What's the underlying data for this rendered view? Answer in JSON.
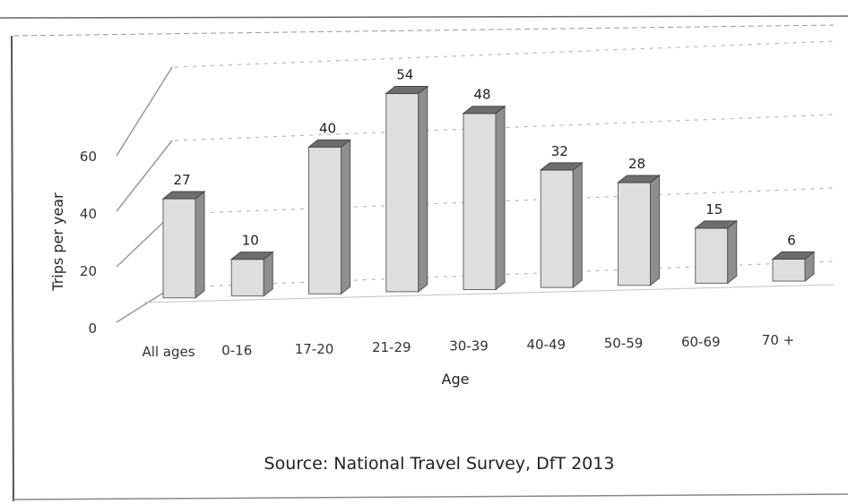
{
  "chart_data": {
    "type": "bar",
    "categories": [
      "All ages",
      "0-16",
      "17-20",
      "21-29",
      "30-39",
      "40-49",
      "50-59",
      "60-69",
      "70 +"
    ],
    "values": [
      27,
      10,
      40,
      54,
      48,
      32,
      28,
      15,
      6
    ],
    "xlabel": "Age",
    "ylabel": "Trips per year",
    "yticks": [
      0,
      20,
      40,
      60
    ],
    "ylim": [
      0,
      70
    ],
    "grid": true,
    "legend": "none",
    "source": "Source: National Travel Survey, DfT 2013",
    "colors": {
      "bar_front": "#dedede",
      "bar_side": "#8e8e8e",
      "bar_top": "#6e6e6e"
    }
  }
}
